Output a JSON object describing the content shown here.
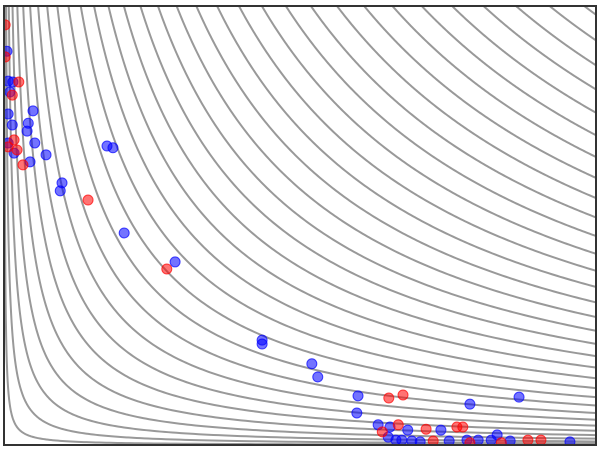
{
  "chart_data": {
    "type": "scatter",
    "xlim": [
      0,
      100
    ],
    "ylim": [
      0,
      100
    ],
    "contour_color": "#999999",
    "contour_levels": [
      9,
      36,
      81,
      144,
      225,
      324,
      441,
      576,
      729,
      900,
      1089,
      1296,
      1521,
      1764,
      2025,
      2304,
      2601,
      2916,
      3249,
      3600,
      3969,
      4356,
      4761,
      5184,
      5625,
      6084,
      6561,
      7056,
      7569,
      8100,
      8649,
      9216,
      9801
    ],
    "series": [
      {
        "color": "#0000ff",
        "x": [
          0.5,
          0.7,
          1.5,
          1.0,
          4.9,
          4.1,
          3.9,
          0.7,
          1.4,
          5.2,
          0.7,
          1.7,
          4.4,
          7.1,
          17.4,
          18.4,
          9.8,
          9.5,
          20.3,
          28.9,
          43.6,
          43.6,
          52.0,
          53.0,
          59.8,
          59.6,
          63.2,
          65.2,
          64.9,
          66.2,
          68.2,
          68.9,
          73.8,
          75.2,
          78.2,
          80.1,
          82.3,
          83.3,
          85.5,
          78.7,
          87.0,
          95.6,
          67.2,
          70.3
        ],
        "y": [
          89.7,
          82.9,
          82.7,
          80.4,
          76.1,
          73.3,
          71.5,
          75.4,
          72.9,
          68.8,
          68.8,
          66.5,
          64.5,
          66.1,
          68.1,
          67.7,
          59.7,
          57.9,
          48.3,
          41.7,
          23.9,
          23.0,
          18.5,
          15.5,
          11.2,
          7.3,
          4.6,
          4.1,
          1.8,
          1.1,
          3.4,
          0.9,
          3.4,
          0.9,
          1.1,
          1.1,
          1.1,
          2.3,
          0.9,
          9.3,
          10.9,
          0.7,
          1.1,
          0.7
        ]
      },
      {
        "color": "#ff0000",
        "x": [
          0.2,
          0.2,
          2.5,
          1.4,
          1.7,
          0.7,
          2.2,
          3.2,
          14.2,
          27.5,
          65.0,
          67.4,
          66.6,
          71.3,
          76.5,
          77.5,
          63.9,
          72.5,
          78.7,
          88.5,
          90.7,
          84.0
        ],
        "y": [
          95.7,
          88.4,
          82.7,
          79.7,
          69.5,
          67.9,
          67.2,
          63.8,
          55.8,
          40.1,
          10.7,
          11.4,
          4.6,
          3.6,
          4.1,
          4.1,
          3.0,
          0.9,
          0.5,
          1.1,
          1.1,
          0.5
        ]
      }
    ]
  }
}
